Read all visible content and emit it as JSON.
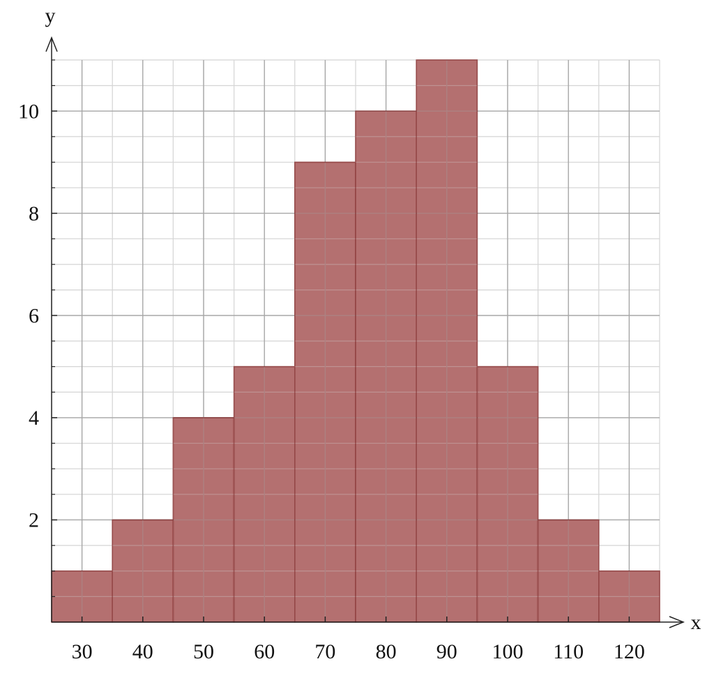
{
  "chart_data": {
    "type": "histogram",
    "x_label": "x",
    "y_label": "y",
    "bins": [
      25,
      35,
      45,
      55,
      65,
      75,
      85,
      95,
      105,
      115,
      125
    ],
    "counts": [
      1,
      2,
      4,
      5,
      9,
      10,
      11,
      5,
      2,
      1
    ],
    "color": "#b06868",
    "edge_color": "#7a1010",
    "xlim": [
      25,
      125
    ],
    "ylim": [
      0,
      11
    ],
    "xticks": [
      30,
      40,
      50,
      60,
      70,
      80,
      90,
      100,
      110,
      120
    ],
    "yticks": [
      2,
      4,
      6,
      8,
      10
    ],
    "y_minor_ticks": [
      0.5,
      1,
      1.5,
      2.5,
      3,
      3.5,
      4.5,
      5,
      5.5,
      6.5,
      7,
      7.5,
      8.5,
      9,
      9.5,
      10.5,
      11
    ],
    "grid": true
  }
}
